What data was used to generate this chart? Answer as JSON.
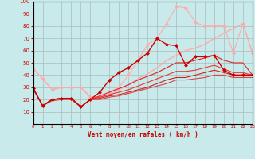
{
  "background_color": "#c8eaea",
  "grid_color": "#aabbbb",
  "xlabel": "Vent moyen/en rafales ( km/h )",
  "xlim": [
    0,
    23
  ],
  "ylim": [
    0,
    100
  ],
  "xticks": [
    0,
    1,
    2,
    3,
    4,
    5,
    6,
    7,
    8,
    9,
    10,
    11,
    12,
    13,
    14,
    15,
    16,
    17,
    18,
    19,
    20,
    21,
    22,
    23
  ],
  "yticks": [
    10,
    20,
    30,
    40,
    50,
    60,
    70,
    80,
    90,
    100
  ],
  "series": [
    {
      "x": [
        0,
        1,
        2,
        3,
        4,
        5,
        6,
        7,
        8,
        9,
        10,
        11,
        12,
        13,
        14,
        15,
        16,
        17,
        18,
        19,
        20,
        21,
        22,
        23
      ],
      "y": [
        45,
        37,
        28,
        30,
        30,
        30,
        22,
        22,
        24,
        28,
        32,
        37,
        41,
        46,
        52,
        56,
        60,
        62,
        65,
        70,
        74,
        78,
        82,
        58
      ],
      "color": "#ffaaaa",
      "marker": null,
      "linewidth": 1.0,
      "zorder": 2
    },
    {
      "x": [
        0,
        1,
        2,
        3,
        4,
        5,
        6,
        7,
        8,
        9,
        10,
        11,
        12,
        13,
        14,
        15,
        16,
        17,
        18,
        19,
        20,
        21,
        22,
        23
      ],
      "y": [
        45,
        37,
        28,
        30,
        30,
        30,
        22,
        22,
        26,
        30,
        40,
        52,
        65,
        70,
        82,
        96,
        95,
        83,
        80,
        80,
        80,
        58,
        82,
        58
      ],
      "color": "#ffaaaa",
      "marker": "D",
      "markersize": 2.0,
      "linewidth": 0.8,
      "zorder": 3
    },
    {
      "x": [
        0,
        1,
        2,
        3,
        4,
        5,
        6,
        7,
        8,
        9,
        10,
        11,
        12,
        13,
        14,
        15,
        16,
        17,
        18,
        19,
        20,
        21,
        22,
        23
      ],
      "y": [
        29,
        15,
        20,
        21,
        21,
        14,
        20,
        26,
        36,
        42,
        46,
        52,
        58,
        70,
        65,
        64,
        48,
        55,
        55,
        56,
        44,
        40,
        40,
        40
      ],
      "color": "#cc0000",
      "marker": "D",
      "markersize": 2.0,
      "linewidth": 1.0,
      "zorder": 5
    },
    {
      "x": [
        0,
        1,
        2,
        3,
        4,
        5,
        6,
        7,
        8,
        9,
        10,
        11,
        12,
        13,
        14,
        15,
        16,
        17,
        18,
        19,
        20,
        21,
        22,
        23
      ],
      "y": [
        29,
        15,
        20,
        21,
        21,
        14,
        20,
        23,
        26,
        29,
        32,
        36,
        39,
        42,
        46,
        50,
        50,
        52,
        54,
        56,
        52,
        50,
        50,
        40
      ],
      "color": "#dd2222",
      "marker": null,
      "linewidth": 0.8,
      "zorder": 4
    },
    {
      "x": [
        0,
        1,
        2,
        3,
        4,
        5,
        6,
        7,
        8,
        9,
        10,
        11,
        12,
        13,
        14,
        15,
        16,
        17,
        18,
        19,
        20,
        21,
        22,
        23
      ],
      "y": [
        29,
        15,
        20,
        21,
        21,
        14,
        20,
        22,
        24,
        26,
        28,
        31,
        34,
        37,
        40,
        43,
        43,
        44,
        46,
        48,
        45,
        42,
        42,
        40
      ],
      "color": "#ee3333",
      "marker": null,
      "linewidth": 0.8,
      "zorder": 3
    },
    {
      "x": [
        0,
        1,
        2,
        3,
        4,
        5,
        6,
        7,
        8,
        9,
        10,
        11,
        12,
        13,
        14,
        15,
        16,
        17,
        18,
        19,
        20,
        21,
        22,
        23
      ],
      "y": [
        29,
        15,
        20,
        21,
        21,
        14,
        20,
        21,
        23,
        24,
        26,
        28,
        30,
        33,
        36,
        38,
        38,
        40,
        42,
        44,
        42,
        40,
        40,
        40
      ],
      "color": "#cc2222",
      "marker": null,
      "linewidth": 0.8,
      "zorder": 3
    },
    {
      "x": [
        0,
        1,
        2,
        3,
        4,
        5,
        6,
        7,
        8,
        9,
        10,
        11,
        12,
        13,
        14,
        15,
        16,
        17,
        18,
        19,
        20,
        21,
        22,
        23
      ],
      "y": [
        29,
        15,
        19,
        20,
        20,
        14,
        20,
        20,
        22,
        23,
        25,
        27,
        29,
        31,
        33,
        36,
        36,
        37,
        38,
        40,
        40,
        38,
        38,
        38
      ],
      "color": "#dd4444",
      "marker": null,
      "linewidth": 0.8,
      "zorder": 3
    }
  ]
}
